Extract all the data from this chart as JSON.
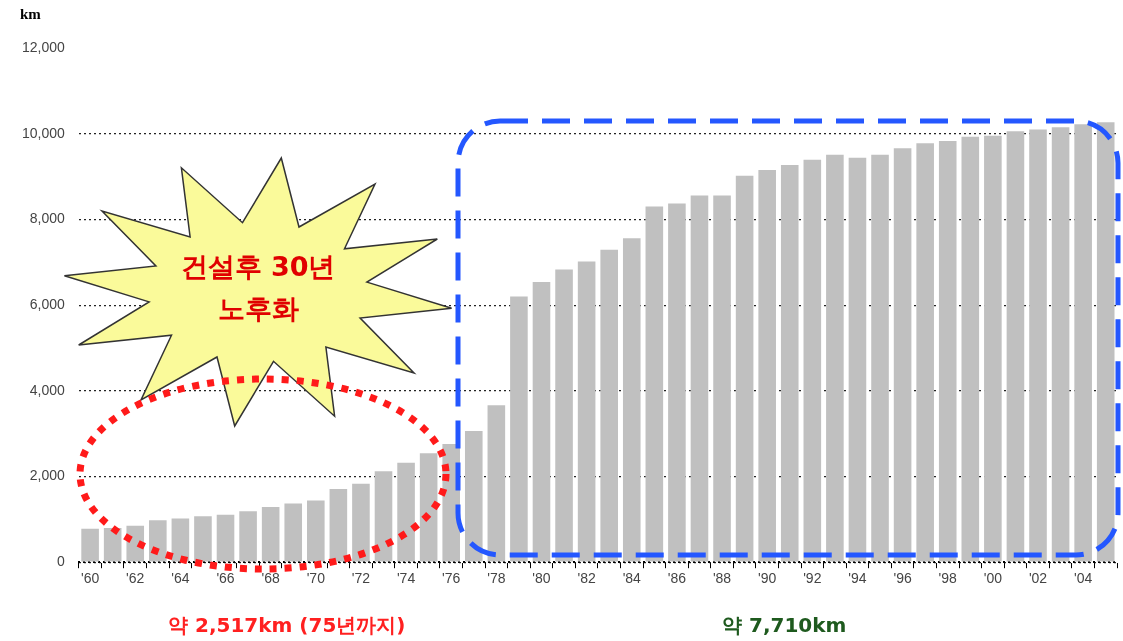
{
  "chart_data": {
    "type": "bar",
    "ylabel": "km",
    "categories": [
      "'60",
      null,
      "'62",
      null,
      "'64",
      null,
      "'66",
      null,
      "'68",
      null,
      "'70",
      null,
      "'72",
      null,
      "'74",
      null,
      "'76",
      null,
      "'78",
      null,
      "'80",
      null,
      "'82",
      null,
      "'84",
      null,
      "'86",
      null,
      "'88",
      null,
      "'90",
      null,
      "'92",
      null,
      "'94",
      null,
      "'96",
      null,
      "'98",
      null,
      "'00",
      null,
      "'02",
      null,
      "'04",
      null
    ],
    "values": [
      780,
      800,
      850,
      980,
      1020,
      1070,
      1110,
      1190,
      1290,
      1370,
      1440,
      1710,
      1830,
      2120,
      2320,
      2540,
      2760,
      3060,
      3660,
      6200,
      6540,
      6830,
      7020,
      7290,
      7560,
      8300,
      8370,
      8560,
      8560,
      9020,
      9150,
      9270,
      9390,
      9510,
      9440,
      9510,
      9660,
      9780,
      9830,
      9930,
      9950,
      10060,
      10100,
      10150,
      10220,
      10270
    ],
    "color": "#c0c0c0",
    "ylim": [
      0,
      12000
    ],
    "yticks": [
      0,
      {
        "value": 2000,
        "label": "2,000"
      },
      {
        "value": 4000,
        "label": "4,000"
      },
      {
        "value": 6000,
        "label": "6,000"
      },
      {
        "value": 8000,
        "label": "8,000"
      },
      {
        "value": 10000,
        "label": "10,000"
      },
      {
        "value": 12000,
        "label": "12,000"
      }
    ],
    "grid": "y",
    "legend": false,
    "annotations": [
      "건설후 30년 노후화",
      "약 2,517km (75년까지)",
      "약 7,710km"
    ]
  }
}
